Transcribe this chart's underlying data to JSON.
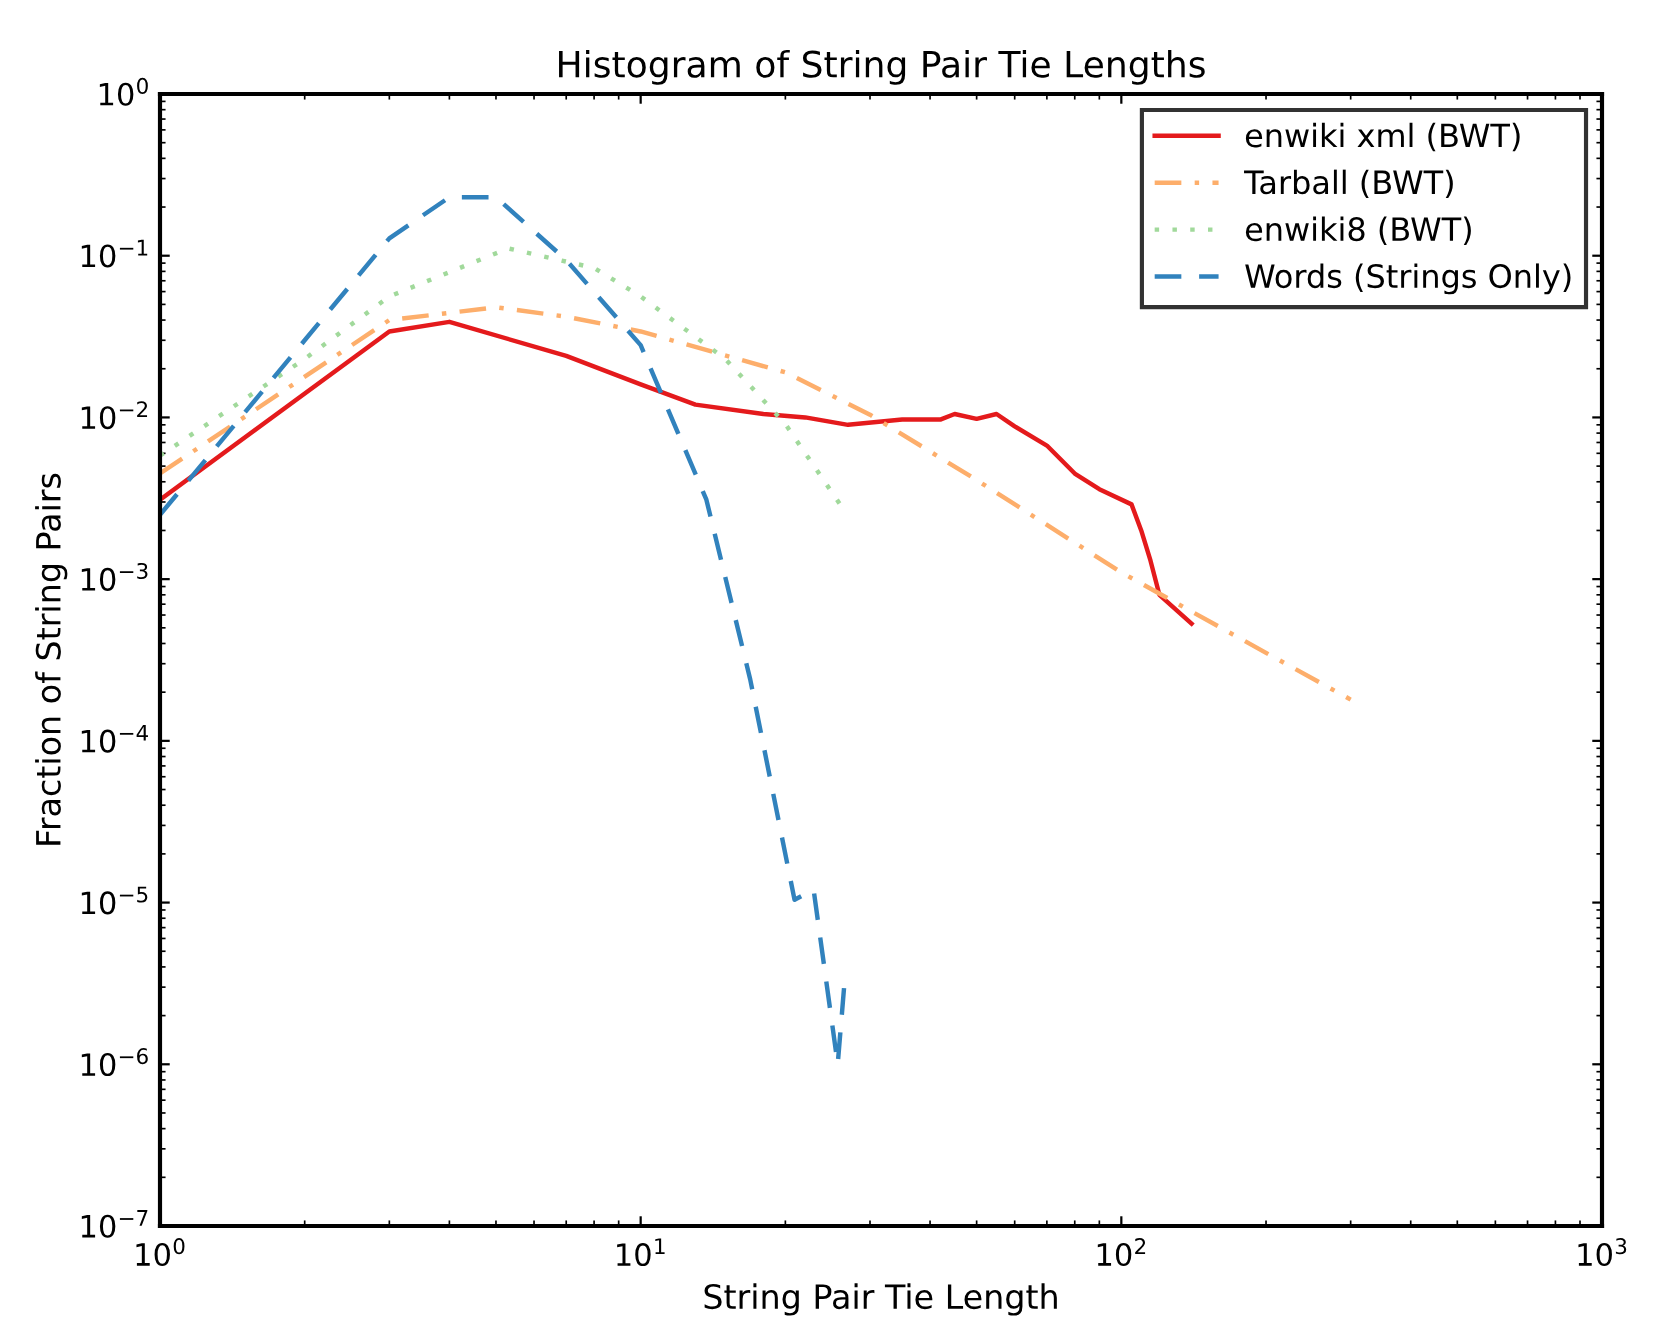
{
  "chart_data": {
    "type": "line",
    "title": "Histogram of String Pair Tie Lengths",
    "xlabel": "String Pair Tie Length",
    "ylabel": "Fraction of String Pairs",
    "log": "xy",
    "xlim": [
      1,
      1000
    ],
    "ylim": [
      1e-07,
      1
    ],
    "xticks": [
      {
        "value": 1,
        "label": "10$^{0}$"
      },
      {
        "value": 10,
        "label": "10$^{1}$"
      },
      {
        "value": 100,
        "label": "10$^{2}$"
      },
      {
        "value": 1000,
        "label": "10$^{3}$"
      }
    ],
    "yticks": [
      {
        "value": 1e-07,
        "label": "10$^{−7}$"
      },
      {
        "value": 1e-06,
        "label": "10$^{−6}$"
      },
      {
        "value": 1e-05,
        "label": "10$^{−5}$"
      },
      {
        "value": 0.0001,
        "label": "10$^{−4}$"
      },
      {
        "value": 0.001,
        "label": "10$^{−3}$"
      },
      {
        "value": 0.01,
        "label": "10$^{−2}$"
      },
      {
        "value": 0.1,
        "label": "10$^{−1}$"
      },
      {
        "value": 1,
        "label": "10$^{0}$"
      }
    ],
    "legend": "top right",
    "grid": false,
    "series": [
      {
        "name": "enwiki xml (BWT)",
        "color": "#e41a1c",
        "line_style": "solid",
        "x": [
          1,
          3,
          4,
          7,
          10,
          13,
          18,
          22,
          27,
          35,
          42,
          45,
          50,
          55,
          60,
          70,
          80,
          90,
          105,
          110,
          115,
          120,
          140
        ],
        "values": [
          0.0031,
          0.034,
          0.039,
          0.024,
          0.016,
          0.012,
          0.0105,
          0.01,
          0.009,
          0.0097,
          0.0097,
          0.0105,
          0.0098,
          0.0105,
          0.0088,
          0.0067,
          0.0045,
          0.0036,
          0.0029,
          0.002,
          0.0013,
          0.0008,
          0.00053
        ]
      },
      {
        "name": "Tarball (BWT)",
        "color": "#fdae6b",
        "line_style": "dashdot",
        "x": [
          1,
          3,
          5,
          7,
          10,
          20,
          30,
          50,
          100,
          200,
          300
        ],
        "values": [
          0.0045,
          0.04,
          0.048,
          0.042,
          0.034,
          0.019,
          0.0104,
          0.0041,
          0.0011,
          0.00035,
          0.00018
        ]
      },
      {
        "name": "enwiki8 (BWT)",
        "color": "#a1d99b",
        "line_style": "dotted",
        "x": [
          1,
          2,
          3,
          5.3,
          8,
          10,
          15,
          20,
          26
        ],
        "values": [
          0.0058,
          0.023,
          0.056,
          0.111,
          0.084,
          0.056,
          0.023,
          0.0091,
          0.0029
        ]
      },
      {
        "name": "Words (Strings Only)",
        "color": "#3182bd",
        "line_style": "dashed",
        "x": [
          1,
          2,
          3,
          4,
          5,
          7,
          10,
          13.7,
          16.9,
          20.9,
          22.9,
          25.7,
          26.5
        ],
        "values": [
          0.0025,
          0.03,
          0.128,
          0.23,
          0.23,
          0.094,
          0.028,
          0.0031,
          0.00024,
          1.04e-05,
          1.2e-05,
          1e-06,
          3e-06
        ]
      }
    ]
  }
}
